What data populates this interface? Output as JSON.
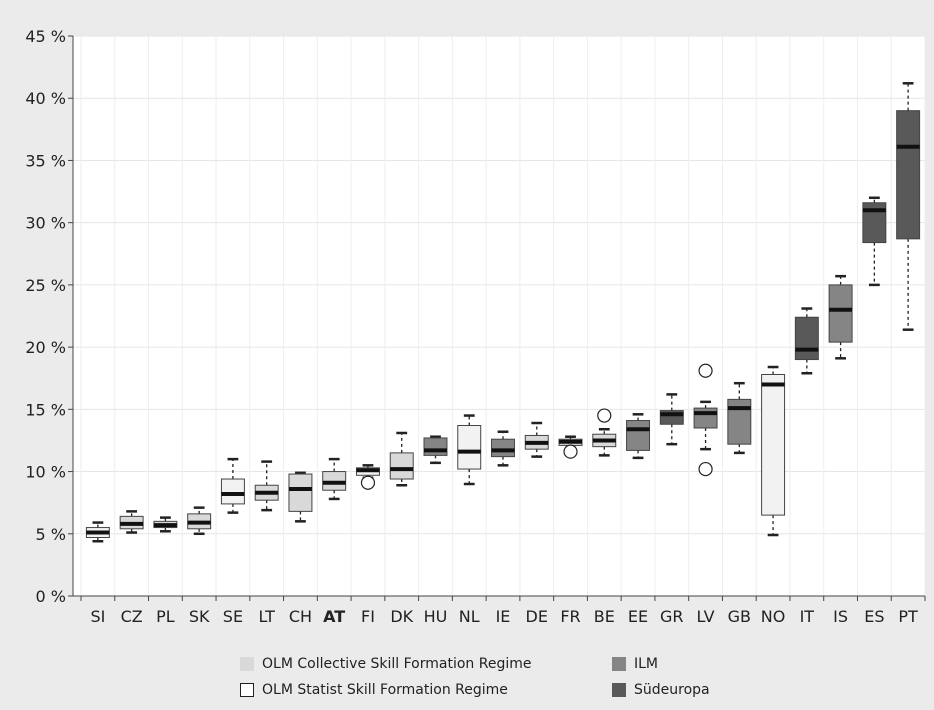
{
  "chart_data": {
    "type": "boxplot",
    "y_ticks": [
      "0 %",
      "5 %",
      "10 %",
      "15 %",
      "20 %",
      "25 %",
      "30 %",
      "35 %",
      "40 %",
      "45 %"
    ],
    "ylim": [
      0,
      45
    ],
    "grid": true,
    "legend_position": "bottom",
    "categories": [
      "SI",
      "CZ",
      "PL",
      "SK",
      "SE",
      "LT",
      "CH",
      "AT",
      "FI",
      "DK",
      "HU",
      "NL",
      "IE",
      "DE",
      "FR",
      "BE",
      "EE",
      "GR",
      "LV",
      "GB",
      "NO",
      "IT",
      "IS",
      "ES",
      "PT"
    ],
    "bold_category": "AT",
    "groups": [
      {
        "name": "OLM Collective Skill Formation Regime",
        "color": "#d9d9d9"
      },
      {
        "name": "OLM Statist Skill Formation Regime",
        "color": "#f2f2f2"
      },
      {
        "name": "ILM",
        "color": "#858585"
      },
      {
        "name": "Südeuropa",
        "color": "#595959"
      }
    ],
    "boxes": [
      {
        "category": "SI",
        "group": 1,
        "min": 4.4,
        "q1": 4.7,
        "median": 5.1,
        "q3": 5.5,
        "max": 5.9,
        "outliers": []
      },
      {
        "category": "CZ",
        "group": 0,
        "min": 5.1,
        "q1": 5.4,
        "median": 5.8,
        "q3": 6.4,
        "max": 6.8,
        "outliers": []
      },
      {
        "category": "PL",
        "group": 0,
        "min": 5.2,
        "q1": 5.5,
        "median": 5.7,
        "q3": 6.0,
        "max": 6.3,
        "outliers": []
      },
      {
        "category": "SK",
        "group": 0,
        "min": 5.0,
        "q1": 5.4,
        "median": 5.9,
        "q3": 6.6,
        "max": 7.1,
        "outliers": []
      },
      {
        "category": "SE",
        "group": 1,
        "min": 6.7,
        "q1": 7.4,
        "median": 8.2,
        "q3": 9.4,
        "max": 11.0,
        "outliers": []
      },
      {
        "category": "LT",
        "group": 0,
        "min": 6.9,
        "q1": 7.7,
        "median": 8.3,
        "q3": 8.9,
        "max": 10.8,
        "outliers": []
      },
      {
        "category": "CH",
        "group": 0,
        "min": 6.0,
        "q1": 6.8,
        "median": 8.6,
        "q3": 9.8,
        "max": 9.9,
        "outliers": []
      },
      {
        "category": "AT",
        "group": 0,
        "min": 7.8,
        "q1": 8.5,
        "median": 9.1,
        "q3": 10.0,
        "max": 11.0,
        "outliers": []
      },
      {
        "category": "FI",
        "group": 1,
        "min": 9.5,
        "q1": 9.7,
        "median": 10.1,
        "q3": 10.3,
        "max": 10.5,
        "outliers": [
          9.1
        ]
      },
      {
        "category": "DK",
        "group": 0,
        "min": 8.9,
        "q1": 9.4,
        "median": 10.2,
        "q3": 11.5,
        "max": 13.1,
        "outliers": []
      },
      {
        "category": "HU",
        "group": 2,
        "min": 10.7,
        "q1": 11.3,
        "median": 11.7,
        "q3": 12.7,
        "max": 12.8,
        "outliers": []
      },
      {
        "category": "NL",
        "group": 1,
        "min": 9.0,
        "q1": 10.2,
        "median": 11.6,
        "q3": 13.7,
        "max": 14.5,
        "outliers": []
      },
      {
        "category": "IE",
        "group": 2,
        "min": 10.5,
        "q1": 11.2,
        "median": 11.7,
        "q3": 12.6,
        "max": 13.2,
        "outliers": []
      },
      {
        "category": "DE",
        "group": 0,
        "min": 11.2,
        "q1": 11.8,
        "median": 12.3,
        "q3": 12.9,
        "max": 13.9,
        "outliers": []
      },
      {
        "category": "FR",
        "group": 0,
        "min": 11.9,
        "q1": 12.1,
        "median": 12.4,
        "q3": 12.6,
        "max": 12.8,
        "outliers": [
          11.6
        ]
      },
      {
        "category": "BE",
        "group": 0,
        "min": 11.3,
        "q1": 12.0,
        "median": 12.5,
        "q3": 13.0,
        "max": 13.4,
        "outliers": [
          14.5
        ]
      },
      {
        "category": "EE",
        "group": 2,
        "min": 11.1,
        "q1": 11.7,
        "median": 13.4,
        "q3": 14.1,
        "max": 14.6,
        "outliers": []
      },
      {
        "category": "GR",
        "group": 3,
        "min": 12.2,
        "q1": 13.8,
        "median": 14.6,
        "q3": 14.9,
        "max": 16.2,
        "outliers": []
      },
      {
        "category": "LV",
        "group": 2,
        "min": 11.8,
        "q1": 13.5,
        "median": 14.7,
        "q3": 15.1,
        "max": 15.6,
        "outliers": [
          18.1,
          10.2
        ]
      },
      {
        "category": "GB",
        "group": 2,
        "min": 11.5,
        "q1": 12.2,
        "median": 15.1,
        "q3": 15.8,
        "max": 17.1,
        "outliers": []
      },
      {
        "category": "NO",
        "group": 1,
        "min": 4.9,
        "q1": 6.5,
        "median": 17.0,
        "q3": 17.8,
        "max": 18.4,
        "outliers": []
      },
      {
        "category": "IT",
        "group": 3,
        "min": 17.9,
        "q1": 19.0,
        "median": 19.8,
        "q3": 22.4,
        "max": 23.1,
        "outliers": []
      },
      {
        "category": "IS",
        "group": 2,
        "min": 19.1,
        "q1": 20.4,
        "median": 23.0,
        "q3": 25.0,
        "max": 25.7,
        "outliers": []
      },
      {
        "category": "ES",
        "group": 3,
        "min": 25.0,
        "q1": 28.4,
        "median": 31.0,
        "q3": 31.6,
        "max": 32.0,
        "outliers": []
      },
      {
        "category": "PT",
        "group": 3,
        "min": 21.4,
        "q1": 28.7,
        "median": 36.1,
        "q3": 39.0,
        "max": 41.2,
        "outliers": []
      }
    ]
  }
}
